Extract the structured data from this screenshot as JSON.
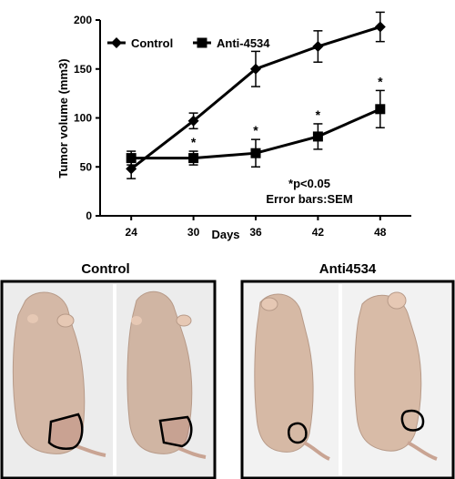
{
  "chart_data": {
    "type": "line",
    "title": "",
    "xlabel": "Days",
    "ylabel": "Tumor volume (mm3)",
    "x": [
      24,
      30,
      36,
      42,
      48
    ],
    "xlim": [
      21,
      51
    ],
    "ylim": [
      0,
      200
    ],
    "yticks": [
      0,
      50,
      100,
      150,
      200
    ],
    "grid": false,
    "legend_position": "top-left",
    "series": [
      {
        "name": "Control",
        "marker": "diamond",
        "color": "#000000",
        "values": [
          48,
          97,
          150,
          173,
          193
        ],
        "errors": [
          10,
          8,
          18,
          16,
          15
        ]
      },
      {
        "name": "Anti-4534",
        "marker": "square",
        "color": "#000000",
        "values": [
          59,
          59,
          64,
          81,
          109
        ],
        "errors": [
          7,
          7,
          14,
          13,
          19
        ]
      }
    ],
    "significance_marker": "*",
    "significant_x": [
      30,
      36,
      42,
      48
    ],
    "annotations": [
      "*p<0.05",
      "Error bars:SEM"
    ]
  },
  "photos": {
    "control_label": "Control",
    "treated_label": "Anti4534"
  }
}
